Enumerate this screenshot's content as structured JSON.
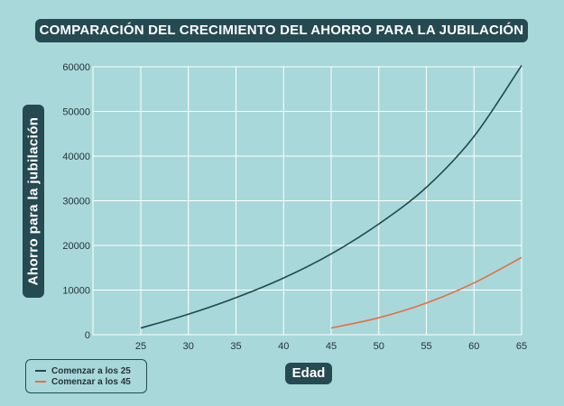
{
  "chart_data": {
    "type": "line",
    "title": "COMPARACIÓN DEL CRECIMIENTO DEL AHORRO PARA LA JUBILACIÓN",
    "xlabel": "Edad",
    "ylabel": "Ahorro para la jubilación",
    "xlim": [
      20,
      65
    ],
    "ylim": [
      0,
      60000
    ],
    "xticks": [
      25,
      30,
      35,
      40,
      45,
      50,
      55,
      60,
      65
    ],
    "yticks": [
      0,
      10000,
      20000,
      30000,
      40000,
      50000,
      60000
    ],
    "grid": true,
    "legend_position": "bottom-left",
    "series": [
      {
        "name": "Comenzar a los 25",
        "color": "#1f4a4e",
        "x": [
          25,
          30,
          35,
          40,
          45,
          50,
          55,
          60,
          65
        ],
        "y": [
          1500,
          4600,
          8300,
          12700,
          18100,
          24800,
          33000,
          44400,
          60300
        ]
      },
      {
        "name": "Comenzar a los 45",
        "color": "#e4703e",
        "x": [
          45,
          50,
          55,
          60,
          65
        ],
        "y": [
          1500,
          3800,
          7100,
          11600,
          17300
        ]
      }
    ]
  }
}
